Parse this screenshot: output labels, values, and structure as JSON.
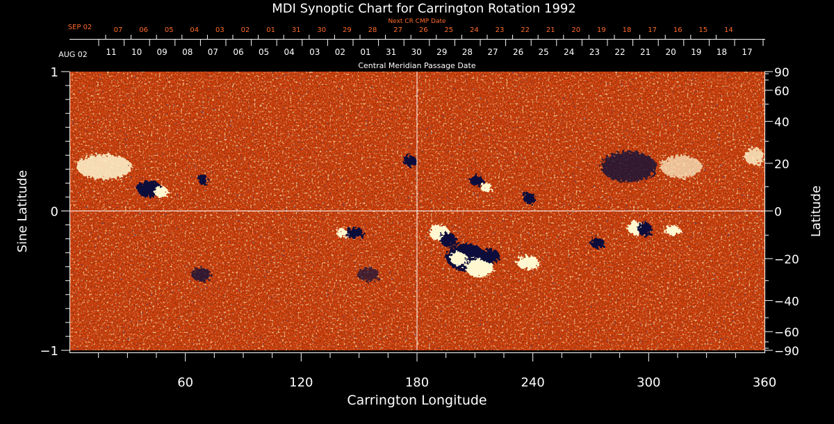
{
  "chart_data": {
    "type": "heatmap",
    "title": "MDI Synoptic Chart for Carrington Rotation 1992",
    "xlabel": "Carrington Longitude",
    "ylabel_left": "Sine Latitude",
    "ylabel_right": "Latitude",
    "xlim": [
      0,
      360
    ],
    "ylim": [
      -1,
      1
    ],
    "x_ticks": [
      60,
      120,
      180,
      240,
      300,
      360
    ],
    "y_left_ticks": [
      {
        "value": 1,
        "label": "1"
      },
      {
        "value": 0,
        "label": "0"
      },
      {
        "value": -1,
        "label": "−1"
      }
    ],
    "y_right_ticks": [
      {
        "lat": 90,
        "label": "90"
      },
      {
        "lat": 60,
        "label": "60"
      },
      {
        "lat": 40,
        "label": "40"
      },
      {
        "lat": 20,
        "label": "20"
      },
      {
        "lat": 0,
        "label": "0"
      },
      {
        "lat": -20,
        "label": "−20"
      },
      {
        "lat": -40,
        "label": "−40"
      },
      {
        "lat": -60,
        "label": "−60"
      },
      {
        "lat": -90,
        "label": "−90"
      }
    ],
    "cmp_axis": {
      "label": "Central Meridian Passage Date",
      "start_label": "AUG 02",
      "dates": [
        "11",
        "10",
        "09",
        "08",
        "07",
        "06",
        "05",
        "04",
        "03",
        "02",
        "01",
        "31",
        "30",
        "29",
        "28",
        "27",
        "26",
        "25",
        "24",
        "23",
        "22",
        "21",
        "20",
        "19",
        "18",
        "17"
      ]
    },
    "next_cr_axis": {
      "label": "Next CR CMP Date",
      "start_label": "SEP 02",
      "dates": [
        "07",
        "06",
        "05",
        "04",
        "03",
        "02",
        "01",
        "31",
        "30",
        "29",
        "28",
        "27",
        "26",
        "25",
        "24",
        "23",
        "22",
        "21",
        "20",
        "19",
        "18",
        "17",
        "16",
        "15",
        "14"
      ]
    },
    "colors": {
      "background": "#e84a10",
      "positive": "#fff6c8",
      "negative": "#10103a",
      "axis": "#ffffff",
      "next_cr": "#ff6a2a"
    }
  }
}
